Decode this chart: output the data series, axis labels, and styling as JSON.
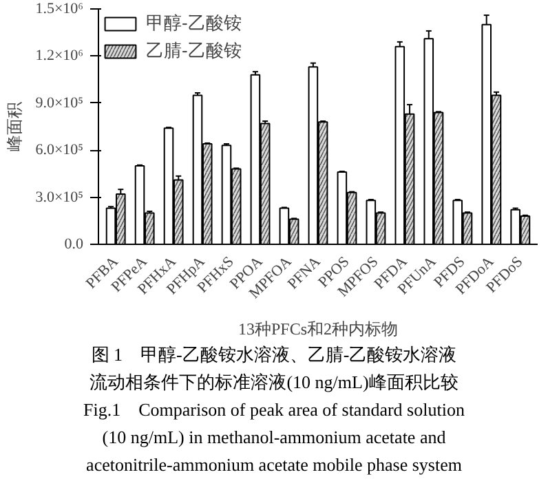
{
  "chart_data": {
    "type": "bar",
    "categories": [
      "PFBA",
      "PFPeA",
      "PFHxA",
      "PFHpA",
      "PFHxS",
      "PPOA",
      "MPFOA",
      "PFNA",
      "PPOS",
      "MPFOS",
      "PFDA",
      "PFUnA",
      "PFDS",
      "PFDoA",
      "PFDoS"
    ],
    "series": [
      {
        "name": "甲醇-乙酸铵",
        "color": "#ffffff",
        "values": [
          230000,
          500000,
          740000,
          950000,
          630000,
          1080000,
          230000,
          1130000,
          460000,
          280000,
          1260000,
          1310000,
          280000,
          1400000,
          220000
        ],
        "errors": [
          10000,
          5000,
          5000,
          15000,
          10000,
          20000,
          5000,
          25000,
          5000,
          5000,
          30000,
          50000,
          5000,
          60000,
          10000
        ]
      },
      {
        "name": "乙腈-乙酸铵",
        "color": "#d9d9d9",
        "values": [
          320000,
          200000,
          410000,
          640000,
          480000,
          770000,
          160000,
          780000,
          330000,
          200000,
          830000,
          840000,
          200000,
          950000,
          180000
        ],
        "errors": [
          30000,
          10000,
          25000,
          5000,
          5000,
          15000,
          5000,
          5000,
          5000,
          5000,
          60000,
          5000,
          5000,
          20000,
          5000
        ]
      }
    ],
    "xlabel": "13种PFCs和2种内标物",
    "ylabel": "峰面积",
    "ylim": [
      0,
      1500000
    ],
    "yticks": [
      {
        "value": 0,
        "label": "0.0"
      },
      {
        "value": 300000,
        "label": "3.0×10⁵"
      },
      {
        "value": 600000,
        "label": "6.0×10⁵"
      },
      {
        "value": 900000,
        "label": "9.0×10⁵"
      },
      {
        "value": 1200000,
        "label": "1.2×10⁶"
      },
      {
        "value": 1500000,
        "label": "1.5×10⁶"
      }
    ],
    "legend": "top left",
    "grid": false,
    "annotations": [
      "图 1　甲醇-乙酸铵水溶液、乙腈-乙酸铵水溶液",
      "流动相条件下的标准溶液(10 ng/mL)峰面积比较",
      "Fig.1　Comparison of peak area of standard solution",
      "(10 ng/mL) in methanol-ammonium acetate and",
      "acetonitrile-ammonium acetate mobile phase system"
    ]
  }
}
